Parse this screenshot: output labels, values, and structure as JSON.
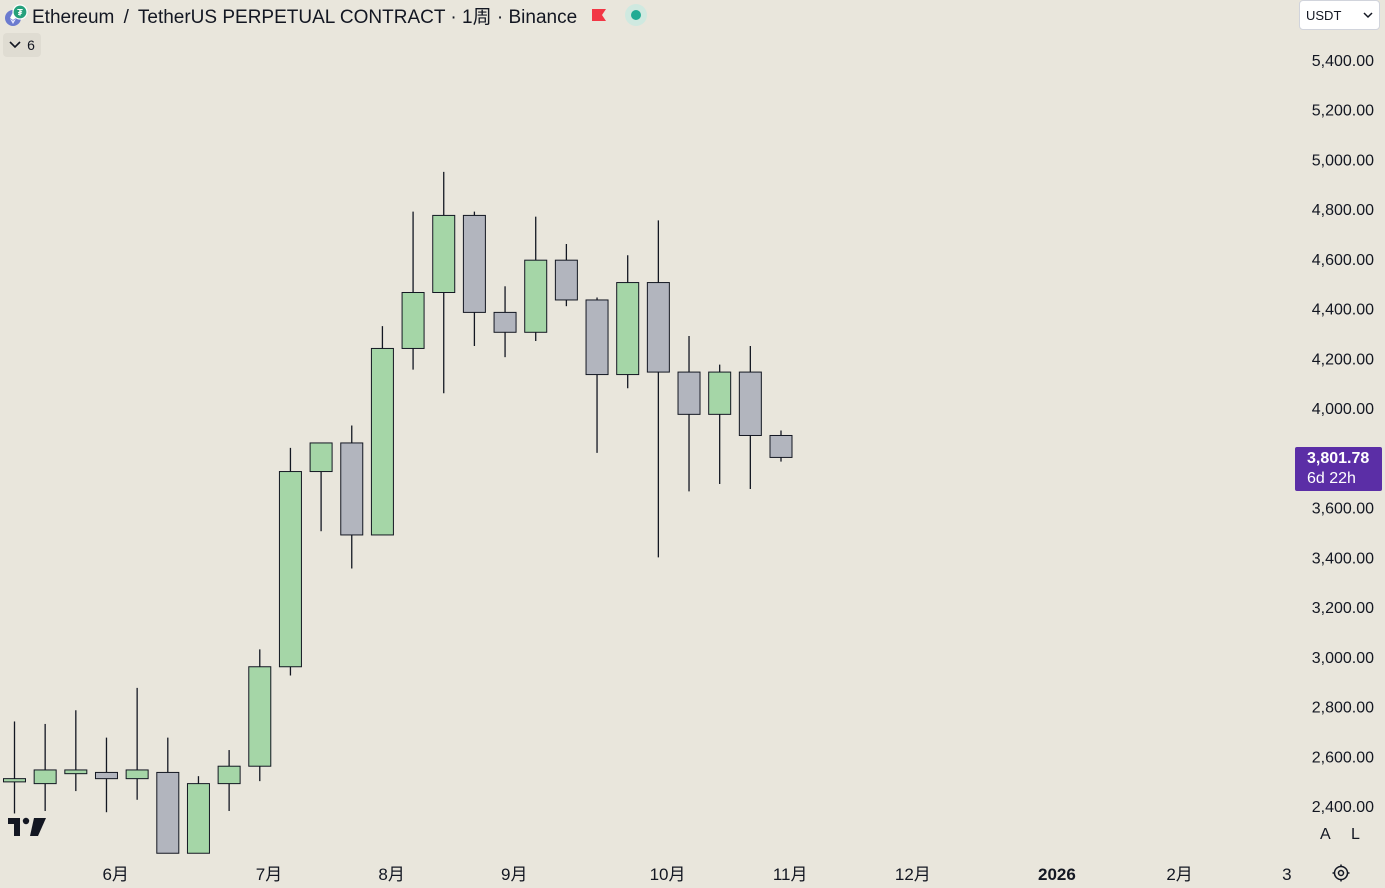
{
  "header": {
    "base": "Ethereum",
    "separator": "/",
    "quote": "TetherUS PERPETUAL CONTRACT",
    "interval": "1周",
    "exchange": "Binance",
    "dot": "·"
  },
  "indicators_toggle": {
    "count": "6"
  },
  "currency_select": {
    "value": "USDT"
  },
  "last_price": {
    "value": "3,801.78",
    "countdown": "6d 22h"
  },
  "scale_buttons": {
    "auto": "A",
    "log": "L"
  },
  "colors": {
    "up": "#a5d6a7",
    "down": "#b2b5be",
    "wick": "#131722",
    "tag": "#5b2ea6",
    "background": "#e9e6dc"
  },
  "chart_data": {
    "type": "candlestick",
    "y_axis": {
      "ticks": [
        2400,
        2600,
        2800,
        3000,
        3200,
        3400,
        3600,
        3800,
        4000,
        4200,
        4400,
        4600,
        4800,
        5000,
        5200,
        5400
      ],
      "tick_labels": [
        "2,400.00",
        "2,600.00",
        "2,800.00",
        "3,000.00",
        "3,200.00",
        "3,400.00",
        "3,600.00",
        "3,800.00",
        "4,000.00",
        "4,200.00",
        "4,400.00",
        "4,600.00",
        "4,800.00",
        "5,000.00",
        "5,200.00",
        "5,400.00"
      ],
      "range": [
        2225,
        5590
      ]
    },
    "x_axis": {
      "tick_labels": [
        "6月",
        "7月",
        "8月",
        "9月",
        "10月",
        "11月",
        "12月",
        "2026",
        "2月",
        "3"
      ],
      "tick_weeks": [
        3.3,
        8.3,
        12.3,
        16.3,
        21.3,
        25.3,
        29.3,
        34.0,
        38.0,
        41.5
      ]
    },
    "candles": [
      {
        "o": 2497,
        "h": 2740,
        "l": 2370,
        "c": 2510
      },
      {
        "o": 2490,
        "h": 2730,
        "l": 2380,
        "c": 2545
      },
      {
        "o": 2530,
        "h": 2785,
        "l": 2460,
        "c": 2545
      },
      {
        "o": 2535,
        "h": 2675,
        "l": 2375,
        "c": 2510
      },
      {
        "o": 2510,
        "h": 2875,
        "l": 2425,
        "c": 2545
      },
      {
        "o": 2535,
        "h": 2675,
        "l": 2210,
        "c": 2210
      },
      {
        "o": 2210,
        "h": 2520,
        "l": 2210,
        "c": 2490
      },
      {
        "o": 2490,
        "h": 2625,
        "l": 2380,
        "c": 2560
      },
      {
        "o": 2560,
        "h": 3030,
        "l": 2500,
        "c": 2960
      },
      {
        "o": 2960,
        "h": 3840,
        "l": 2925,
        "c": 3745
      },
      {
        "o": 3745,
        "h": 3860,
        "l": 3505,
        "c": 3860
      },
      {
        "o": 3860,
        "h": 3930,
        "l": 3355,
        "c": 3490
      },
      {
        "o": 3490,
        "h": 4330,
        "l": 3490,
        "c": 4240
      },
      {
        "o": 4240,
        "h": 4790,
        "l": 4155,
        "c": 4465
      },
      {
        "o": 4465,
        "h": 4950,
        "l": 4060,
        "c": 4775
      },
      {
        "o": 4775,
        "h": 4790,
        "l": 4250,
        "c": 4385
      },
      {
        "o": 4385,
        "h": 4490,
        "l": 4205,
        "c": 4305
      },
      {
        "o": 4305,
        "h": 4770,
        "l": 4270,
        "c": 4595
      },
      {
        "o": 4595,
        "h": 4660,
        "l": 4410,
        "c": 4435
      },
      {
        "o": 4435,
        "h": 4445,
        "l": 3820,
        "c": 4135
      },
      {
        "o": 4135,
        "h": 4615,
        "l": 4080,
        "c": 4505
      },
      {
        "o": 4505,
        "h": 4755,
        "l": 3400,
        "c": 4145
      },
      {
        "o": 4145,
        "h": 4290,
        "l": 3665,
        "c": 3975
      },
      {
        "o": 3975,
        "h": 4175,
        "l": 3695,
        "c": 4145
      },
      {
        "o": 4145,
        "h": 4250,
        "l": 3675,
        "c": 3890
      },
      {
        "o": 3890,
        "h": 3910,
        "l": 3785,
        "c": 3801.78
      }
    ]
  }
}
